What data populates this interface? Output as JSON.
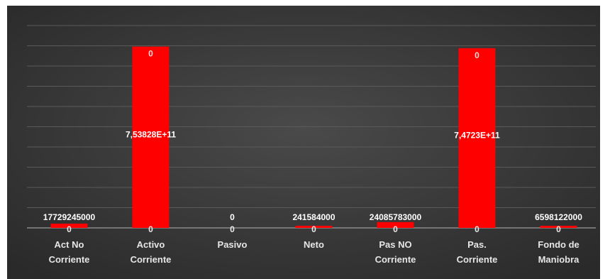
{
  "chart_data": {
    "type": "bar",
    "title": "",
    "xlabel": "",
    "ylabel": "",
    "grid": true,
    "background": "#3a3a3a",
    "bar_color": "#ff0000",
    "categories": [
      [
        "Act No",
        "Corriente"
      ],
      [
        "Activo",
        "Corriente"
      ],
      [
        "Pasivo"
      ],
      [
        "Neto"
      ],
      [
        "Pas NO",
        "Corriente"
      ],
      [
        "Pas.",
        "Corriente"
      ],
      [
        "Fondo de",
        "Maniobra"
      ]
    ],
    "values": [
      17729245000,
      753828000000,
      0,
      241584000,
      24085783000,
      747230000000,
      6598122000
    ],
    "value_labels": [
      "17729245000",
      "7,53828E+11",
      "0",
      "241584000",
      "24085783000",
      "7,4723E+11",
      "6598122000"
    ],
    "zero_labels": [
      "0",
      "0",
      "0",
      "0",
      "0",
      "0",
      "0"
    ],
    "top_labels": [
      "",
      "0",
      "",
      "",
      "",
      "0",
      ""
    ],
    "ylim": [
      0,
      800000000000
    ]
  }
}
